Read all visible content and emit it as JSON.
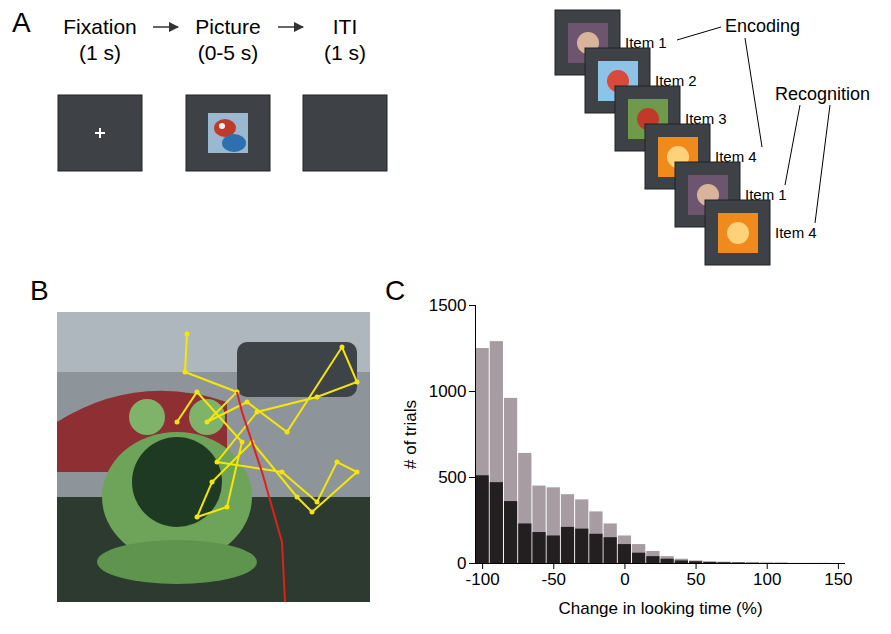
{
  "task_diagram": {
    "panel": "A",
    "trial": [
      {
        "label": "Fixation",
        "duration": "(1 s)"
      },
      {
        "label": "Picture",
        "duration": "(0-5 s)"
      },
      {
        "label": "ITI",
        "duration": "(1 s)"
      }
    ],
    "sequence": {
      "items": [
        "Item 1",
        "Item 2",
        "Item 3",
        "Item 4",
        "Item 1",
        "Item 4"
      ],
      "encoding": "Encoding",
      "recognition": "Recognition"
    }
  },
  "scanpath_image": {
    "panel": "B"
  },
  "chart_data": {
    "type": "histogram",
    "panel": "C",
    "xlabel": "Change in looking time (%)",
    "ylabel": "# of trials",
    "bins": [
      -105,
      -95,
      -85,
      -75,
      -65,
      -55,
      -45,
      -35,
      -25,
      -15,
      -5,
      5,
      15,
      25,
      35,
      45,
      55,
      65,
      75,
      85,
      95,
      105,
      115,
      125,
      135,
      145,
      155
    ],
    "series": [
      {
        "color": "#a89ca3",
        "values": [
          1250,
          1290,
          960,
          640,
          450,
          440,
          400,
          370,
          300,
          230,
          160,
          110,
          70,
          40,
          25,
          15,
          10,
          8,
          5,
          3,
          2,
          2,
          1,
          1,
          1,
          0
        ]
      },
      {
        "color": "#231f20",
        "values": [
          510,
          470,
          360,
          230,
          180,
          160,
          210,
          200,
          170,
          150,
          110,
          60,
          40,
          25,
          15,
          10,
          6,
          4,
          3,
          2,
          1,
          1,
          0,
          0,
          0,
          0
        ]
      }
    ],
    "xlim": [
      -105,
      155
    ],
    "xticks": [
      -100,
      -50,
      0,
      50,
      100,
      150
    ],
    "ylim": [
      0,
      1500
    ],
    "yticks": [
      0,
      500,
      1000,
      1500
    ],
    "grid": false,
    "data_labels": false
  }
}
